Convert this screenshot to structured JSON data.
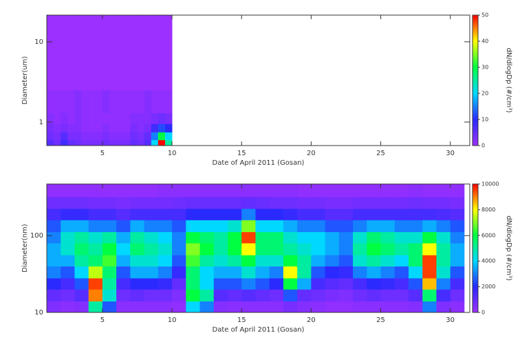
{
  "chart_data": [
    {
      "type": "heatmap",
      "xlabel": "Date of April 2011 (Gosan)",
      "ylabel": "Diameter(um)",
      "colorbar_label": "dN/dlogDp (#/cm³)",
      "xlim": [
        1,
        31.4
      ],
      "xticks": [
        5,
        10,
        15,
        20,
        25,
        30
      ],
      "ylim": [
        0.51,
        21.5
      ],
      "yticks": [
        1,
        10
      ],
      "log_y": true,
      "clim": [
        0,
        50
      ],
      "cticks": [
        0,
        10,
        20,
        30,
        40,
        50
      ],
      "colormap": [
        "#9b30ff",
        "#2a2aff",
        "#00d8ff",
        "#00ff40",
        "#ffff00",
        "#ff0000"
      ],
      "xbins": [
        1,
        1.5,
        2,
        2.5,
        3,
        3.5,
        4,
        4.5,
        5,
        5.5,
        6,
        6.5,
        7,
        7.5,
        8,
        8.5,
        9,
        9.5,
        10
      ],
      "ybins": [
        0.51,
        0.6,
        0.75,
        0.95,
        1.3,
        2.5,
        21.5
      ],
      "values": [
        [
          6,
          4,
          8,
          5,
          4,
          3,
          3,
          3,
          4,
          3,
          3,
          3,
          5,
          4,
          6,
          20,
          50,
          25
        ],
        [
          4,
          3,
          6,
          3,
          3,
          2,
          2,
          2,
          3,
          2,
          2,
          2,
          4,
          3,
          5,
          15,
          30,
          20
        ],
        [
          3,
          2,
          3,
          2,
          2,
          1,
          1,
          1,
          2,
          1,
          1,
          1,
          3,
          2,
          3,
          8,
          12,
          10
        ],
        [
          2,
          1,
          2,
          1,
          2,
          1,
          1,
          1,
          1,
          1,
          1,
          1,
          2,
          2,
          2,
          3,
          4,
          3
        ],
        [
          1,
          1,
          1,
          1,
          2,
          1,
          1,
          1,
          2,
          1,
          1,
          1,
          1,
          1,
          2,
          1,
          1,
          1
        ],
        [
          0,
          0,
          0,
          0,
          0,
          0,
          0,
          0,
          0,
          0,
          0,
          0,
          0,
          0,
          0,
          0,
          0,
          0
        ]
      ]
    },
    {
      "type": "heatmap",
      "xlabel": "Date of April 2011 (Gosan)",
      "ylabel": "Diameter(nm)",
      "colorbar_label": "dN/dlogDp (#/cm³)",
      "xlim": [
        1,
        31.4
      ],
      "xticks": [
        5,
        10,
        15,
        20,
        25,
        30
      ],
      "ylim": [
        10,
        470
      ],
      "yticks": [
        10,
        100
      ],
      "log_y": true,
      "clim": [
        0,
        10000
      ],
      "cticks": [
        0,
        2000,
        4000,
        6000,
        8000,
        10000
      ],
      "colormap": [
        "#9b30ff",
        "#2a2aff",
        "#00d8ff",
        "#00ff40",
        "#ffff00",
        "#ff0000"
      ],
      "xbins": [
        1,
        2,
        3,
        4,
        5,
        6,
        7,
        8,
        9,
        10,
        11,
        12,
        13,
        14,
        15,
        16,
        17,
        18,
        19,
        20,
        21,
        22,
        23,
        24,
        25,
        26,
        27,
        28,
        29,
        30,
        31
      ],
      "ybins": [
        10,
        14,
        20,
        28,
        40,
        56,
        80,
        112,
        160,
        225,
        320,
        470
      ],
      "values": [
        [
          500,
          300,
          400,
          5000,
          2500,
          300,
          300,
          300,
          300,
          200,
          4000,
          3000,
          400,
          300,
          300,
          300,
          300,
          600,
          400,
          300,
          200,
          200,
          300,
          300,
          300,
          300,
          400,
          3000,
          500,
          300
        ],
        [
          1000,
          800,
          1200,
          9000,
          4500,
          800,
          1000,
          800,
          800,
          500,
          6000,
          5000,
          1200,
          1000,
          1200,
          1000,
          800,
          2500,
          1000,
          800,
          600,
          500,
          800,
          1000,
          800,
          800,
          1200,
          5500,
          1500,
          800
        ],
        [
          2000,
          1500,
          2500,
          9500,
          5000,
          1500,
          2000,
          2000,
          1800,
          1000,
          5500,
          4000,
          2500,
          2500,
          3000,
          2500,
          2000,
          6000,
          3500,
          1500,
          1200,
          1000,
          1500,
          2000,
          1800,
          1500,
          2500,
          8500,
          3000,
          1500
        ],
        [
          3000,
          2500,
          4000,
          7500,
          5500,
          2500,
          3500,
          3500,
          3000,
          1800,
          5500,
          4000,
          3500,
          3500,
          4500,
          3500,
          3000,
          8000,
          5000,
          2500,
          2000,
          1800,
          3000,
          3500,
          3000,
          2500,
          4000,
          9500,
          4500,
          2500
        ],
        [
          3500,
          3500,
          5000,
          5500,
          6500,
          3500,
          4500,
          4500,
          4000,
          2500,
          6500,
          5000,
          4500,
          5000,
          6000,
          4500,
          4500,
          6000,
          5000,
          3500,
          3000,
          2500,
          4500,
          5000,
          4500,
          4000,
          5500,
          9500,
          5000,
          3500
        ],
        [
          3500,
          4500,
          5500,
          5000,
          6000,
          4000,
          5500,
          5000,
          4500,
          3000,
          7000,
          6000,
          5000,
          6000,
          8000,
          5500,
          5500,
          5000,
          4500,
          4000,
          3500,
          3000,
          5000,
          6000,
          5500,
          5000,
          5500,
          8000,
          5000,
          3500
        ],
        [
          3000,
          4500,
          5000,
          4500,
          5000,
          3500,
          5000,
          4500,
          4000,
          3000,
          6000,
          5500,
          5000,
          6000,
          9500,
          5500,
          5500,
          4500,
          4000,
          4000,
          3500,
          3000,
          4500,
          5500,
          5000,
          4500,
          4500,
          6000,
          4500,
          3000
        ],
        [
          2500,
          3500,
          3500,
          3000,
          3000,
          2500,
          3500,
          3000,
          3000,
          2500,
          4000,
          4000,
          4000,
          4500,
          7000,
          4000,
          4000,
          3500,
          3000,
          3000,
          2500,
          2500,
          3000,
          3500,
          3500,
          3000,
          3000,
          3500,
          3000,
          2500
        ],
        [
          1500,
          1800,
          1800,
          1500,
          1500,
          1200,
          1500,
          1500,
          1500,
          1500,
          2000,
          2000,
          2000,
          2000,
          3000,
          2000,
          2000,
          1800,
          1500,
          1500,
          1200,
          1200,
          1500,
          1500,
          1500,
          1500,
          1500,
          1500,
          1400,
          1200
        ],
        [
          800,
          800,
          800,
          700,
          700,
          600,
          700,
          700,
          700,
          800,
          900,
          900,
          900,
          900,
          1000,
          900,
          800,
          800,
          700,
          700,
          600,
          600,
          700,
          700,
          700,
          700,
          800,
          700,
          700,
          600
        ],
        [
          200,
          200,
          200,
          200,
          200,
          200,
          200,
          200,
          300,
          300,
          300,
          300,
          300,
          300,
          300,
          300,
          300,
          300,
          200,
          200,
          200,
          200,
          200,
          200,
          200,
          200,
          300,
          200,
          200,
          200
        ]
      ]
    }
  ]
}
